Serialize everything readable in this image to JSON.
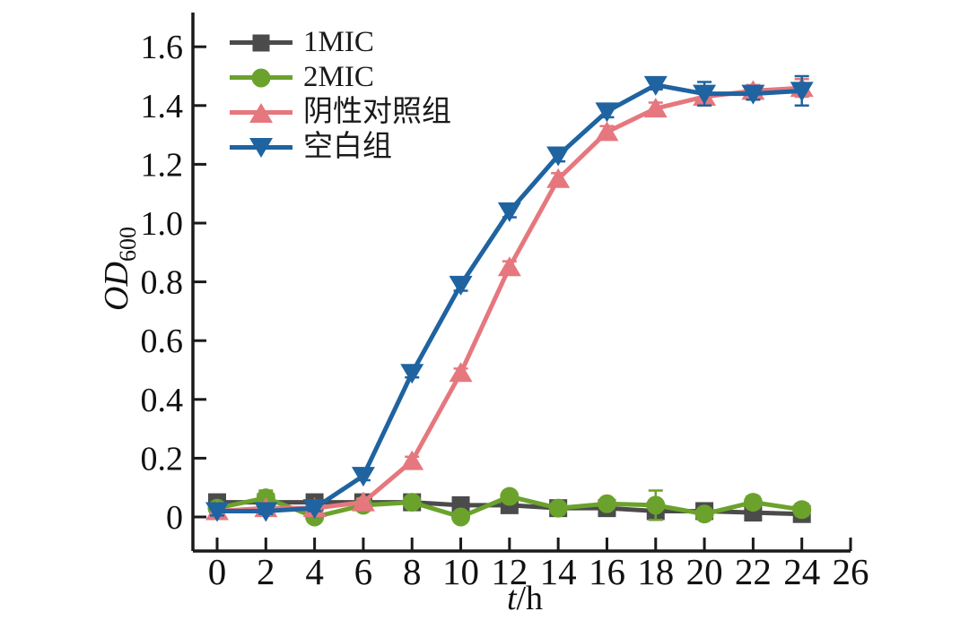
{
  "figure": {
    "background": "#ffffff",
    "axis_color": "#1a1a1a",
    "ylabel": {
      "main": "OD",
      "sub": "600"
    },
    "xlabel": {
      "italic_part": "t",
      "rest": "/h"
    }
  },
  "chart_data": {
    "type": "line",
    "title": "",
    "xlabel": "t/h",
    "ylabel": "OD600",
    "grid": false,
    "legend_position": "top-left",
    "xlim": [
      -1,
      26
    ],
    "ylim": [
      -0.12,
      1.72
    ],
    "xticks": [
      "0",
      "2",
      "4",
      "6",
      "8",
      "10",
      "12",
      "14",
      "16",
      "18",
      "20",
      "22",
      "24",
      "26"
    ],
    "xtick_values": [
      0,
      2,
      4,
      6,
      8,
      10,
      12,
      14,
      16,
      18,
      20,
      22,
      24,
      26
    ],
    "yticks": [
      "0",
      "0.2",
      "0.4",
      "0.6",
      "0.8",
      "1.0",
      "1.2",
      "1.4",
      "1.6"
    ],
    "ytick_values": [
      0,
      0.2,
      0.4,
      0.6,
      0.8,
      1.0,
      1.2,
      1.4,
      1.6
    ],
    "x": [
      0,
      2,
      4,
      6,
      8,
      10,
      12,
      14,
      16,
      18,
      20,
      22,
      24
    ],
    "series": [
      {
        "name": "1MIC",
        "marker": "square",
        "color": "#4b4b4b",
        "values": [
          0.05,
          0.05,
          0.05,
          0.05,
          0.05,
          0.04,
          0.04,
          0.03,
          0.03,
          0.02,
          0.02,
          0.015,
          0.01
        ],
        "errors": [
          0.012,
          0.012,
          0.01,
          0.01,
          0.01,
          0.01,
          0.012,
          0.01,
          0.01,
          0.01,
          0.01,
          0.01,
          0.012
        ]
      },
      {
        "name": "2MIC",
        "marker": "circle",
        "color": "#6ba22c",
        "values": [
          0.03,
          0.065,
          0.0,
          0.04,
          0.05,
          0.0,
          0.07,
          0.03,
          0.045,
          0.04,
          0.01,
          0.05,
          0.025
        ],
        "errors": [
          0.012,
          0.025,
          0.012,
          0.012,
          0.012,
          0.012,
          0.015,
          0.012,
          0.015,
          0.05,
          0.012,
          0.02,
          0.02
        ]
      },
      {
        "name": "阴性对照组",
        "marker": "triangle-up",
        "color": "#e6777e",
        "values": [
          0.02,
          0.03,
          0.03,
          0.05,
          0.19,
          0.49,
          0.85,
          1.15,
          1.31,
          1.39,
          1.43,
          1.45,
          1.46
        ],
        "errors": [
          0.01,
          0.01,
          0.01,
          0.012,
          0.015,
          0.015,
          0.02,
          0.02,
          0.02,
          0.02,
          0.02,
          0.02,
          0.03
        ]
      },
      {
        "name": "空白组",
        "marker": "triangle-down",
        "color": "#1f63a0",
        "values": [
          0.02,
          0.02,
          0.03,
          0.14,
          0.49,
          0.79,
          1.04,
          1.23,
          1.38,
          1.47,
          1.44,
          1.44,
          1.45
        ],
        "errors": [
          0.015,
          0.01,
          0.01,
          0.015,
          0.015,
          0.02,
          0.02,
          0.02,
          0.02,
          0.015,
          0.04,
          0.02,
          0.05
        ]
      }
    ]
  }
}
